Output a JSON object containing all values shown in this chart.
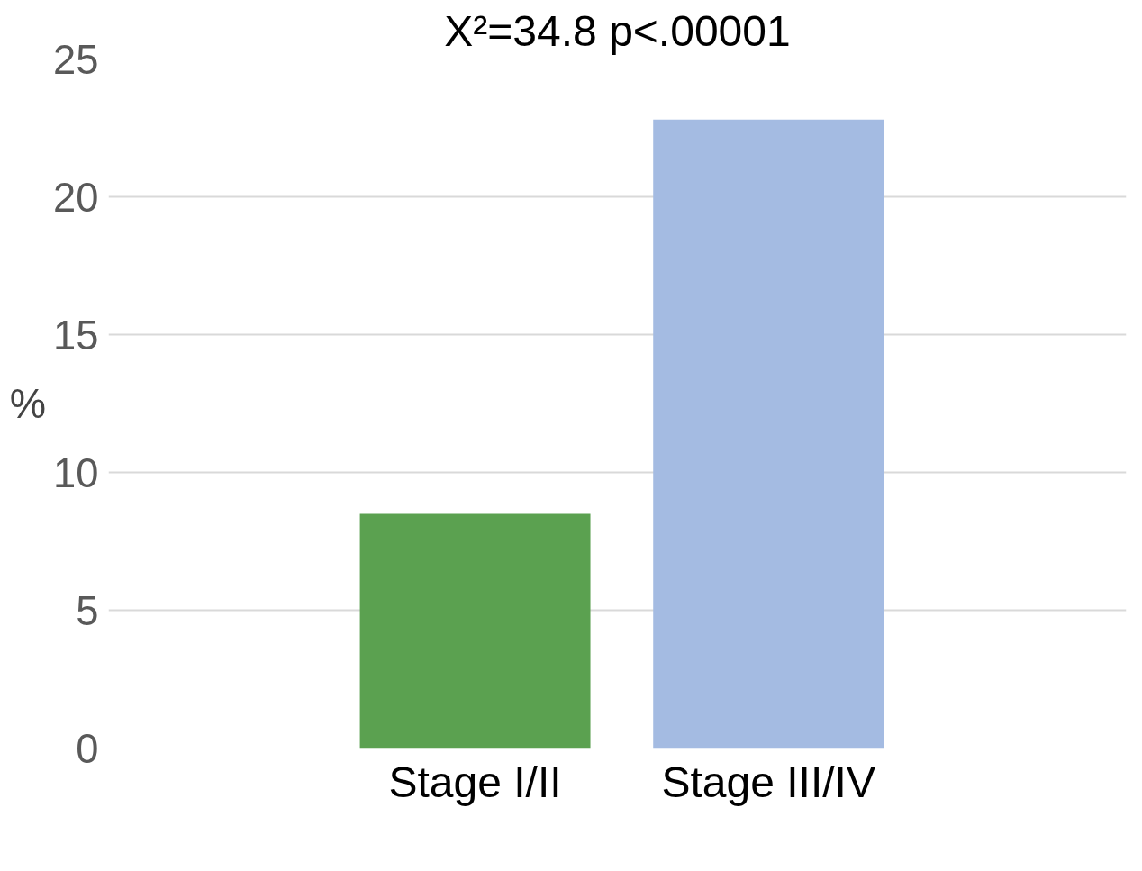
{
  "chart_data": {
    "type": "bar",
    "title": "X²=34.8 p<.00001",
    "ylabel": "%",
    "categories": [
      "Stage I/II",
      "Stage III/IV"
    ],
    "values": [
      8.5,
      22.8
    ],
    "colors": [
      "#5ba150",
      "#a4bbe2"
    ],
    "ylim": [
      0,
      25
    ],
    "yticks": [
      0,
      5,
      10,
      15,
      20,
      25
    ],
    "grid": "y"
  }
}
